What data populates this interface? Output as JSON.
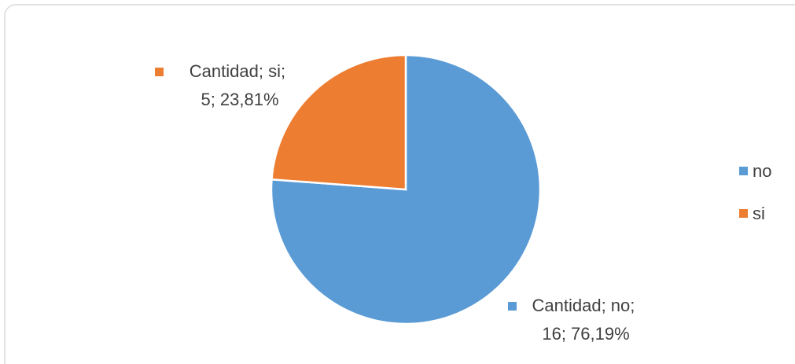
{
  "chart_data": {
    "type": "pie",
    "categories": [
      "no",
      "si"
    ],
    "series": [
      {
        "name": "Cantidad",
        "values": [
          16,
          5
        ],
        "value_labels": [
          "Cantidad; no; 16; 76,19%",
          "Cantidad; si; 5; 23,81%"
        ]
      }
    ],
    "colors": [
      "#5b9bd5",
      "#ed7d31"
    ],
    "legend": "right"
  }
}
